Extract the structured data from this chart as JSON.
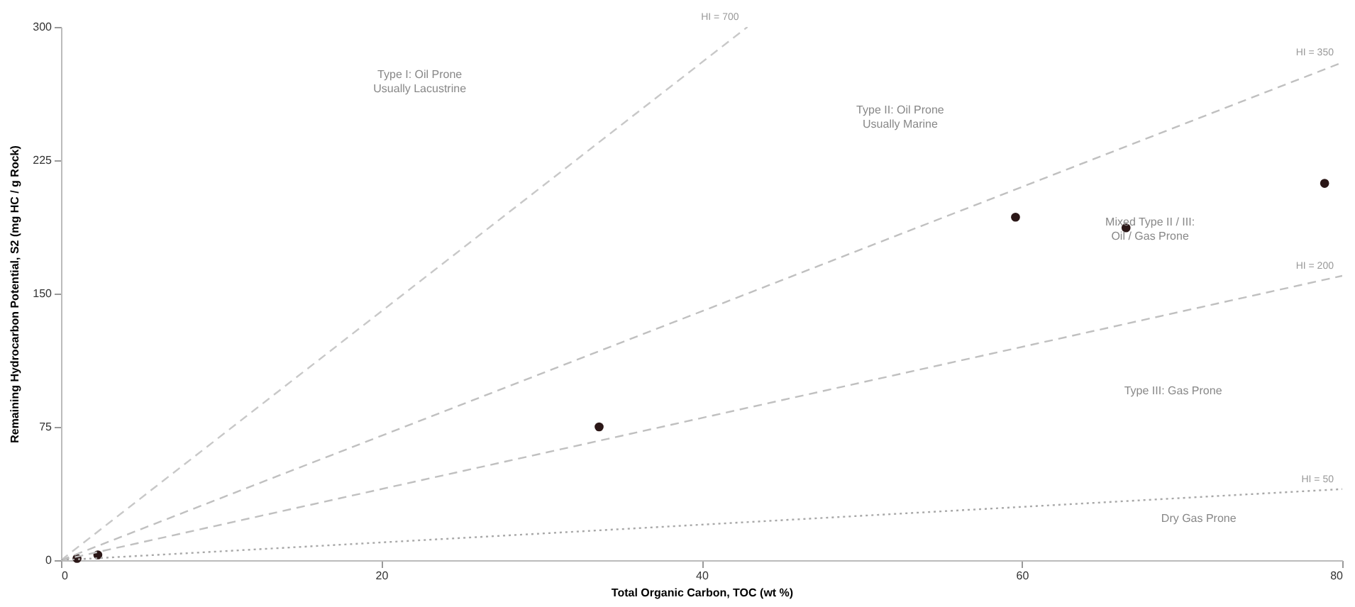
{
  "chart_data": {
    "type": "scatter",
    "xlabel": "Total Organic Carbon, TOC (wt %)",
    "ylabel": "Remaining Hydrocarbon Potential, S2 (mg HC / g Rock)",
    "xlim": [
      0,
      80
    ],
    "ylim": [
      0,
      300
    ],
    "xticks": [
      0,
      20,
      40,
      60,
      80
    ],
    "yticks": [
      0,
      75,
      150,
      225,
      300
    ],
    "grid": false,
    "series": [
      {
        "marker": "circle",
        "color": "#2b1717",
        "x": [
          1,
          2.3,
          33.6,
          59.6,
          66.5,
          78.9
        ],
        "values": [
          1,
          3,
          75,
          193,
          187,
          212
        ]
      },
      {
        "type": "line",
        "name": "HI = 700",
        "color": "#c8c8c8",
        "line_style": "dashed",
        "x": [
          0,
          42.86
        ],
        "values": [
          0,
          300
        ]
      },
      {
        "type": "line",
        "name": "HI = 350",
        "color": "#c0c0c0",
        "line_style": "dashed",
        "x": [
          0,
          80
        ],
        "values": [
          0,
          280
        ]
      },
      {
        "type": "line",
        "name": "HI = 200",
        "color": "#c0c0c0",
        "line_style": "dashed",
        "x": [
          0,
          80
        ],
        "values": [
          0,
          160
        ]
      },
      {
        "type": "line",
        "name": "HI = 50",
        "color": "#a8a8a8",
        "line_style": "dotted",
        "x": [
          0,
          80
        ],
        "values": [
          0,
          40
        ]
      }
    ],
    "annotations": [
      "Type I: Oil Prone\nUsually Lacustrine",
      "Type II: Oil Prone\nUsually Marine",
      "Mixed Type II / III:\nOil / Gas Prone",
      "Type III: Gas Prone",
      "Dry Gas Prone"
    ]
  }
}
